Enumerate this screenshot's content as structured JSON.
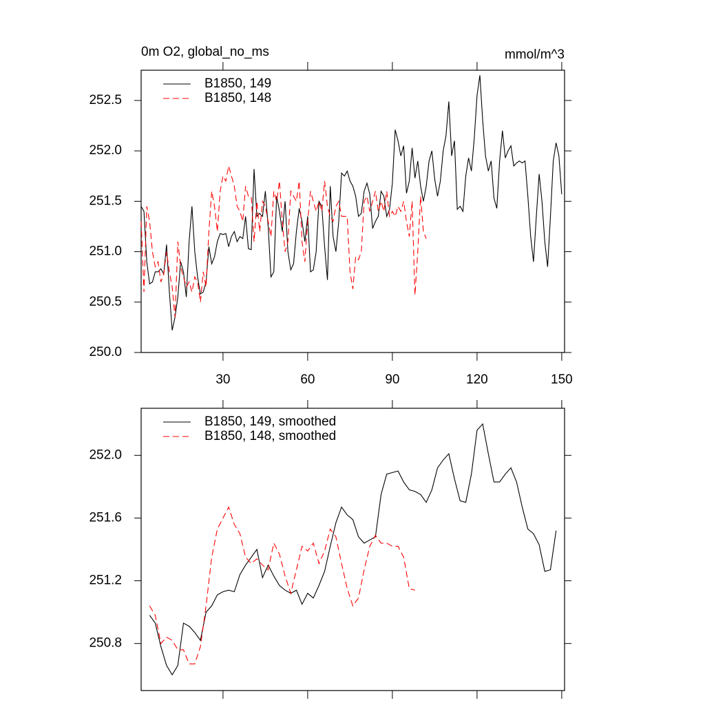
{
  "chart_data": [
    {
      "type": "line",
      "title": "0m O2, global_no_ms",
      "units": "mmol/m^3",
      "legend": "upper left",
      "x": [
        1,
        2,
        3,
        4,
        5,
        6,
        7,
        8,
        9,
        10,
        11,
        12,
        13,
        14,
        15,
        16,
        17,
        18,
        19,
        20,
        21,
        22,
        23,
        24,
        25,
        26,
        27,
        28,
        29,
        30,
        31,
        32,
        33,
        34,
        35,
        36,
        37,
        38,
        39,
        40,
        41,
        42,
        43,
        44,
        45,
        46,
        47,
        48,
        49,
        50,
        51,
        52,
        53,
        54,
        55,
        56,
        57,
        58,
        59,
        60,
        61,
        62,
        63,
        64,
        65,
        66,
        67,
        68,
        69,
        70,
        71,
        72,
        73,
        74,
        75,
        76,
        77,
        78,
        79,
        80,
        81,
        82,
        83,
        84,
        85,
        86,
        87,
        88,
        89,
        90,
        91,
        92,
        93,
        94,
        95,
        96,
        97,
        98,
        99,
        100,
        101,
        102,
        103,
        104,
        105,
        106,
        107,
        108,
        109,
        110,
        111,
        112,
        113,
        114,
        115,
        116,
        117,
        118,
        119,
        120,
        121,
        122,
        123,
        124,
        125,
        126,
        127,
        128,
        129,
        130,
        131,
        132,
        133,
        134,
        135,
        136,
        137,
        138,
        139,
        140,
        141,
        142,
        143,
        144,
        145,
        146,
        147,
        148,
        149,
        150
      ],
      "series": [
        {
          "name": "B1850, 149",
          "color": "#000000",
          "dash": false,
          "values": [
            251.45,
            251.4,
            250.9,
            250.68,
            250.7,
            250.8,
            250.8,
            250.83,
            250.78,
            251.07,
            250.6,
            250.22,
            250.35,
            250.55,
            250.9,
            250.8,
            250.55,
            251.1,
            251.45,
            251.0,
            250.75,
            250.58,
            250.6,
            250.7,
            251.05,
            250.88,
            250.95,
            251.1,
            251.18,
            251.17,
            251.18,
            251.05,
            251.15,
            251.2,
            251.1,
            251.15,
            251.13,
            251.35,
            251.03,
            251.02,
            251.82,
            251.35,
            251.38,
            251.35,
            251.6,
            251.25,
            250.75,
            250.8,
            251.55,
            251.4,
            251.2,
            251.5,
            251.0,
            250.82,
            250.88,
            251.2,
            251.43,
            251.3,
            251.1,
            251.35,
            250.8,
            250.82,
            251.0,
            251.5,
            251.45,
            251.05,
            250.72,
            251.65,
            251.15,
            251.0,
            251.3,
            251.78,
            251.75,
            251.8,
            251.7,
            251.65,
            251.55,
            251.35,
            251.38,
            251.6,
            251.68,
            251.57,
            251.23,
            251.3,
            251.35,
            251.6,
            251.55,
            251.35,
            251.42,
            251.68,
            252.21,
            252.1,
            251.95,
            252.05,
            251.58,
            251.7,
            252.03,
            251.73,
            251.9,
            251.65,
            251.5,
            251.65,
            251.9,
            252.0,
            251.72,
            251.55,
            251.7,
            252.0,
            252.15,
            252.49,
            251.95,
            252.1,
            251.42,
            251.45,
            251.4,
            251.75,
            251.93,
            251.8,
            252.12,
            252.55,
            252.75,
            252.3,
            251.95,
            251.8,
            251.9,
            251.53,
            251.43,
            251.9,
            252.2,
            251.93,
            252.0,
            252.05,
            251.85,
            251.88,
            251.9,
            251.88,
            251.9,
            251.55,
            251.15,
            250.9,
            251.35,
            251.77,
            251.5,
            251.1,
            250.85,
            251.35,
            251.9,
            252.08,
            251.95,
            251.57
          ]
        },
        {
          "name": "B1850, 148",
          "color": "#ff0000",
          "dash": true,
          "values": [
            251.3,
            250.6,
            251.45,
            251.3,
            251.0,
            250.85,
            250.9,
            250.7,
            250.78,
            251.0,
            250.8,
            250.65,
            250.35,
            251.1,
            250.85,
            250.75,
            250.65,
            250.7,
            250.6,
            250.75,
            250.7,
            250.5,
            250.8,
            250.65,
            251.2,
            251.6,
            251.45,
            251.2,
            251.6,
            251.75,
            251.7,
            251.85,
            251.75,
            251.65,
            251.45,
            251.4,
            251.3,
            251.65,
            251.55,
            251.55,
            251.1,
            251.5,
            251.2,
            251.5,
            251.45,
            251.3,
            251.15,
            251.6,
            251.5,
            251.7,
            251.3,
            251.0,
            251.1,
            251.6,
            251.55,
            251.5,
            251.7,
            251.1,
            250.9,
            251.3,
            251.6,
            251.5,
            251.4,
            251.5,
            251.4,
            251.7,
            251.45,
            251.35,
            251.3,
            251.45,
            251.5,
            251.35,
            251.35,
            251.35,
            250.8,
            250.63,
            250.95,
            250.92,
            251.0,
            251.5,
            251.55,
            251.4,
            251.5,
            251.6,
            251.4,
            251.5,
            251.4,
            251.6,
            251.35,
            251.4,
            251.35,
            251.45,
            251.4,
            251.5,
            251.3,
            251.15,
            251.5,
            250.57,
            251.0,
            251.55,
            251.2,
            251.13,
            null,
            null,
            null,
            null,
            null,
            null,
            null,
            null,
            null,
            null,
            null,
            null,
            null,
            null,
            null,
            null,
            null,
            null,
            null,
            null,
            null,
            null,
            null,
            null,
            null,
            null,
            null,
            null,
            null,
            null,
            null,
            null,
            null,
            null,
            null,
            null,
            null,
            null,
            null,
            null,
            null,
            null,
            null,
            null,
            null,
            null,
            null,
            null
          ]
        }
      ],
      "xlim": [
        1,
        151
      ],
      "xticks": [
        30,
        60,
        90,
        120,
        150
      ],
      "ylim": [
        250,
        252.8
      ],
      "yticks": [
        {
          "value": 250,
          "label": "250.0"
        },
        250.5,
        {
          "value": 251,
          "label": "251.0"
        },
        251.5,
        {
          "value": 252,
          "label": "252.0"
        },
        252.5
      ]
    },
    {
      "type": "line",
      "legend": "upper left",
      "x": [
        4,
        6,
        8,
        10,
        12,
        14,
        16,
        18,
        20,
        22,
        24,
        26,
        28,
        30,
        32,
        34,
        36,
        38,
        40,
        42,
        44,
        46,
        48,
        50,
        52,
        54,
        56,
        58,
        60,
        62,
        64,
        66,
        68,
        70,
        72,
        74,
        76,
        78,
        80,
        82,
        84,
        86,
        88,
        90,
        92,
        94,
        96,
        98,
        100,
        102,
        104,
        106,
        108,
        110,
        112,
        114,
        116,
        118,
        120,
        122,
        124,
        126,
        128,
        130,
        132,
        134,
        136,
        138,
        140,
        142,
        144,
        146,
        148
      ],
      "series": [
        {
          "name": "B1850, 149, smoothed",
          "color": "#000000",
          "dash": false,
          "values": [
            250.98,
            250.93,
            250.78,
            250.66,
            250.6,
            250.66,
            250.93,
            250.91,
            250.87,
            250.82,
            251.0,
            251.04,
            251.11,
            251.13,
            251.14,
            251.13,
            251.24,
            251.3,
            251.35,
            251.4,
            251.22,
            251.3,
            251.23,
            251.17,
            251.14,
            251.12,
            251.14,
            251.05,
            251.12,
            251.09,
            251.17,
            251.26,
            251.42,
            251.57,
            251.67,
            251.62,
            251.59,
            251.48,
            251.44,
            251.46,
            251.48,
            251.75,
            251.88,
            251.89,
            251.9,
            251.83,
            251.78,
            251.77,
            251.75,
            251.7,
            251.78,
            251.92,
            251.97,
            252.01,
            251.85,
            251.71,
            251.7,
            251.88,
            252.16,
            252.2,
            252.01,
            251.83,
            251.83,
            251.88,
            251.92,
            251.83,
            251.67,
            251.53,
            251.5,
            251.43,
            251.26,
            251.27,
            251.52
          ]
        },
        {
          "name": "B1850, 148, smoothed",
          "color": "#ff0000",
          "dash": true,
          "values": [
            251.04,
            250.98,
            250.8,
            250.84,
            250.82,
            250.76,
            250.76,
            250.67,
            250.67,
            250.78,
            251.04,
            251.35,
            251.53,
            251.6,
            251.67,
            251.56,
            251.5,
            251.35,
            251.31,
            251.34,
            251.3,
            251.27,
            251.44,
            251.37,
            251.23,
            251.12,
            251.27,
            251.42,
            251.39,
            251.44,
            251.31,
            251.39,
            251.53,
            251.48,
            251.31,
            251.15,
            251.04,
            251.09,
            251.27,
            251.42,
            251.49,
            251.44,
            251.44,
            251.42,
            251.42,
            251.35,
            251.15,
            251.14,
            null,
            null,
            null,
            null,
            null,
            null,
            null,
            null,
            null,
            null,
            null,
            null,
            null,
            null,
            null,
            null,
            null,
            null,
            null,
            null,
            null,
            null,
            null,
            null,
            null
          ]
        }
      ],
      "xlim": [
        1,
        151
      ],
      "xticks": [
        30,
        60,
        90,
        120,
        150
      ],
      "ylim": [
        250.5,
        252.3
      ],
      "yticks": [
        250.8,
        251.2,
        251.6,
        {
          "value": 252,
          "label": "252.0"
        }
      ]
    }
  ]
}
